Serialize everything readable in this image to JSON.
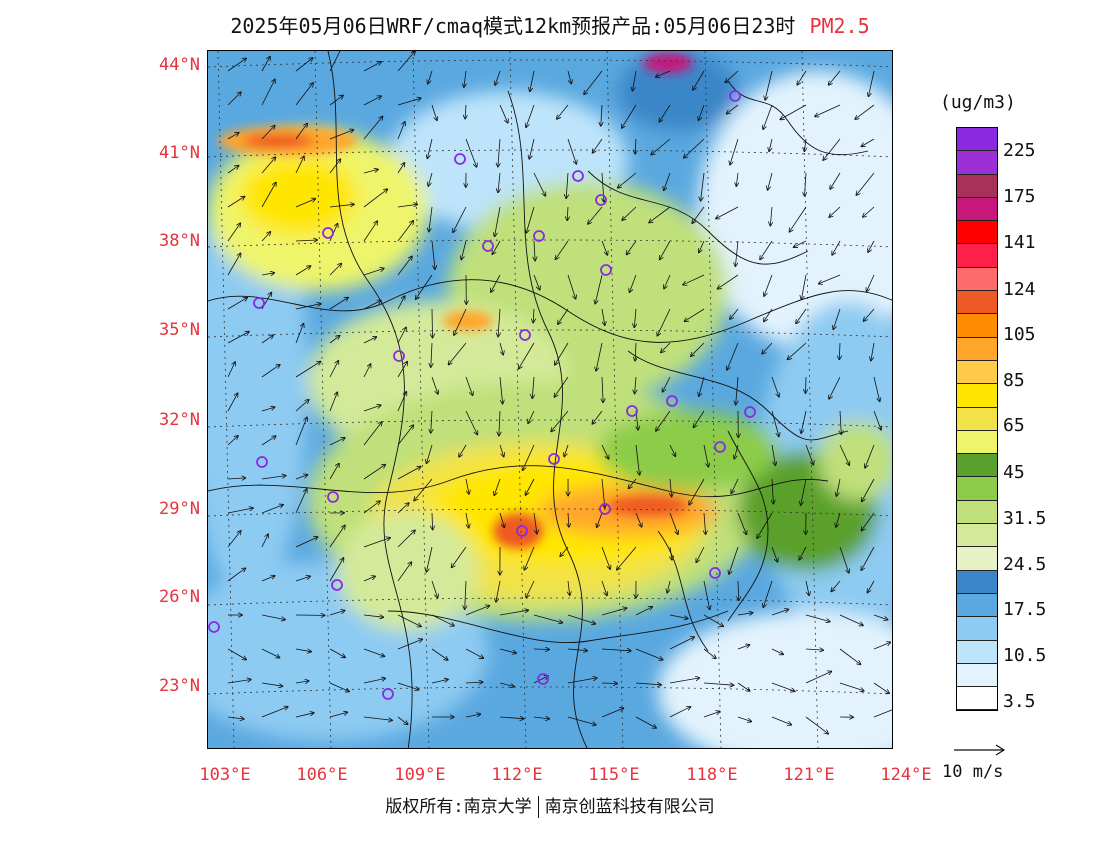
{
  "header": {
    "title": "2025年05月06日WRF/cmaq模式12km预报产品:05月06日23时",
    "variable": "PM2.5"
  },
  "map": {
    "lat_ticks": [
      "44°N",
      "41°N",
      "38°N",
      "35°N",
      "32°N",
      "29°N",
      "26°N",
      "23°N"
    ],
    "lon_ticks": [
      "103°E",
      "106°E",
      "109°E",
      "112°E",
      "115°E",
      "118°E",
      "121°E",
      "124°E"
    ]
  },
  "legend": {
    "unit": "(ug/m3)",
    "colors": [
      "#8a2be2",
      "#9c2fd6",
      "#a8315a",
      "#c8177a",
      "#ff0000",
      "#ff1f4b",
      "#ff6b6b",
      "#ee5a24",
      "#ff8c00",
      "#ffa62b",
      "#ffc94a",
      "#ffe600",
      "#f2e24a",
      "#eef56a",
      "#5aa02c",
      "#8ccc4a",
      "#bfe07a",
      "#d4ea9a",
      "#e6f2c6",
      "#3a86c8",
      "#5aa8e0",
      "#8ecbf2",
      "#bde4fa",
      "#e2f3fd",
      "#ffffff"
    ],
    "labels": [
      "225",
      "175",
      "141",
      "124",
      "105",
      "85",
      "65",
      "45",
      "31.5",
      "24.5",
      "17.5",
      "10.5",
      "3.5"
    ]
  },
  "wind_reference": {
    "label": "10 m/s"
  },
  "footer": {
    "credit_left": "版权所有:南京大学",
    "credit_right": "南京创蓝科技有限公司"
  }
}
